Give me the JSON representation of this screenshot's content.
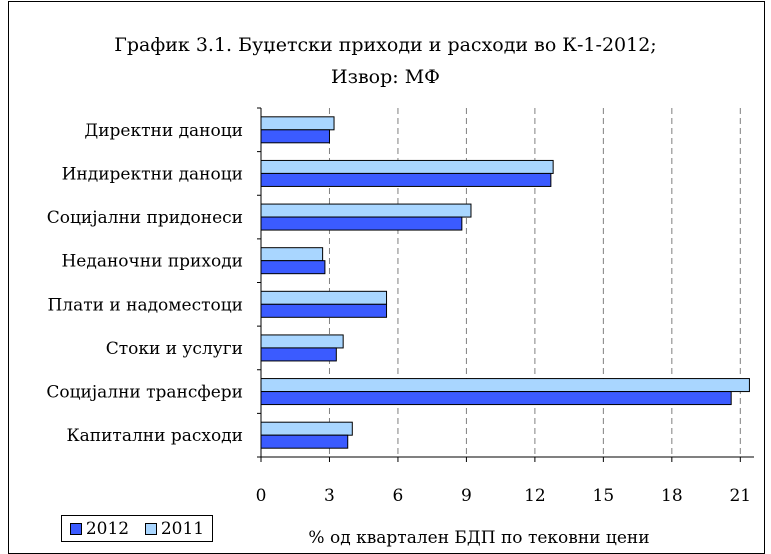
{
  "title_line1": "График 3.1. Буџетски приходи и расходи во К-1-2012;",
  "title_line2": "Извор: МФ",
  "colors": {
    "s2012": "#3b5bff",
    "s2011": "#a9d6ff"
  },
  "chart_data": {
    "type": "bar",
    "orientation": "horizontal",
    "categories": [
      "Директни даноци",
      "Индиректни даноци",
      "Социјални придонеси",
      "Неданочни приходи",
      "Плати и надоместоци",
      "Стоки и услуги ",
      "Социјални трансфери",
      "Капитални расходи"
    ],
    "series": [
      {
        "name": "2012",
        "values": [
          3.0,
          12.7,
          8.8,
          2.8,
          5.5,
          3.3,
          20.6,
          3.8
        ]
      },
      {
        "name": "2011",
        "values": [
          3.2,
          12.8,
          9.2,
          2.7,
          5.5,
          3.6,
          21.4,
          4.0
        ]
      }
    ],
    "xticks": [
      "0",
      "3",
      "6",
      "9",
      "12",
      "15",
      "18",
      "21"
    ],
    "xlim": [
      0,
      21.6
    ],
    "xlabel": "% од квартален БДП по тековни цени",
    "grid": "vertical dashed",
    "legend_position": "bottom-left"
  }
}
